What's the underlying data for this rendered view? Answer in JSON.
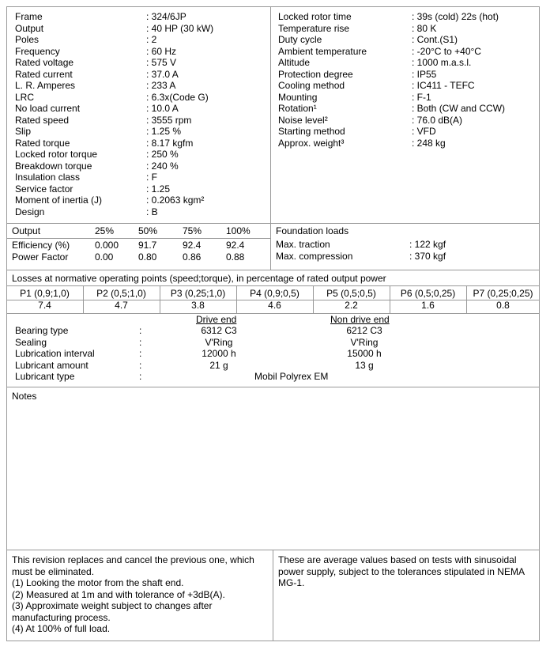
{
  "specs_left": [
    [
      "Frame",
      ": 324/6JP"
    ],
    [
      "Output",
      ": 40 HP (30 kW)"
    ],
    [
      "Poles",
      ": 2"
    ],
    [
      "Frequency",
      ": 60 Hz"
    ],
    [
      "Rated voltage",
      ": 575 V"
    ],
    [
      "Rated current",
      ": 37.0 A"
    ],
    [
      "L. R. Amperes",
      ": 233 A"
    ],
    [
      "LRC",
      ": 6.3x(Code G)"
    ],
    [
      "No load current",
      ": 10.0 A"
    ],
    [
      "Rated speed",
      ": 3555 rpm"
    ],
    [
      "Slip",
      ": 1.25 %"
    ],
    [
      "Rated torque",
      ": 8.17 kgfm"
    ],
    [
      "Locked rotor torque",
      ": 250 %"
    ],
    [
      "Breakdown torque",
      ": 240 %"
    ],
    [
      "Insulation class",
      ": F"
    ],
    [
      "Service factor",
      ": 1.25"
    ],
    [
      "Moment of inertia (J)",
      ": 0.2063 kgm²"
    ],
    [
      "Design",
      ": B"
    ]
  ],
  "specs_right": [
    [
      "Locked rotor time",
      ": 39s (cold) 22s (hot)"
    ],
    [
      "Temperature rise",
      ": 80 K"
    ],
    [
      "Duty cycle",
      ": Cont.(S1)"
    ],
    [
      "Ambient temperature",
      ": -20°C to +40°C"
    ],
    [
      "Altitude",
      ": 1000 m.a.s.l."
    ],
    [
      "Protection degree",
      ": IP55"
    ],
    [
      "Cooling method",
      ": IC411 - TEFC"
    ],
    [
      "Mounting",
      ": F-1"
    ],
    [
      "Rotation¹",
      ": Both (CW and CCW)"
    ],
    [
      "Noise level²",
      ": 76.0 dB(A)"
    ],
    [
      "Starting method",
      ": VFD"
    ],
    [
      "Approx. weight³",
      ": 248 kg"
    ]
  ],
  "performance": {
    "header": [
      "Output",
      "25%",
      "50%",
      "75%",
      "100%"
    ],
    "rows": [
      [
        "Efficiency (%)",
        "0.000",
        "91.7",
        "92.4",
        "92.4"
      ],
      [
        "Power Factor",
        "0.00",
        "0.80",
        "0.86",
        "0.88"
      ]
    ]
  },
  "foundation": {
    "title": "Foundation loads",
    "rows": [
      [
        "Max. traction",
        ": 122 kgf"
      ],
      [
        "Max. compression",
        ": 370 kgf"
      ]
    ]
  },
  "losses": {
    "title": "Losses at normative operating points (speed;torque), in percentage of rated output power",
    "points": [
      "P1 (0,9;1,0)",
      "P2 (0,5;1,0)",
      "P3 (0,25;1,0)",
      "P4 (0,9;0,5)",
      "P5 (0,5;0,5)",
      "P6 (0,5;0,25)",
      "P7 (0,25;0,25)"
    ],
    "values": [
      "7.4",
      "4.7",
      "3.8",
      "4.6",
      "2.2",
      "1.6",
      "0.8"
    ]
  },
  "bearings": {
    "drive_end": "Drive end",
    "non_drive_end": "Non drive end",
    "rows": [
      [
        "Bearing type",
        ":",
        "6312 C3",
        "6212 C3"
      ],
      [
        "Sealing",
        ":",
        "V'Ring",
        "V'Ring"
      ],
      [
        "Lubrication interval",
        ":",
        "12000 h",
        "15000 h"
      ],
      [
        "Lubricant amount",
        ":",
        "21 g",
        "13 g"
      ]
    ],
    "lubricant_type": [
      "Lubricant type",
      ":",
      "Mobil Polyrex EM"
    ]
  },
  "notes": {
    "title": "Notes"
  },
  "footer": {
    "left": [
      "This revision replaces and cancel the previous one, which",
      "must be eliminated.",
      "(1) Looking the motor from the shaft end.",
      "(2) Measured at 1m and with tolerance of +3dB(A).",
      "(3) Approximate weight subject to changes after",
      "manufacturing process.",
      "(4) At 100% of full load."
    ],
    "right": [
      "These are average values based on tests with sinusoidal",
      "power supply, subject to the tolerances stipulated in NEMA",
      "MG-1."
    ]
  }
}
